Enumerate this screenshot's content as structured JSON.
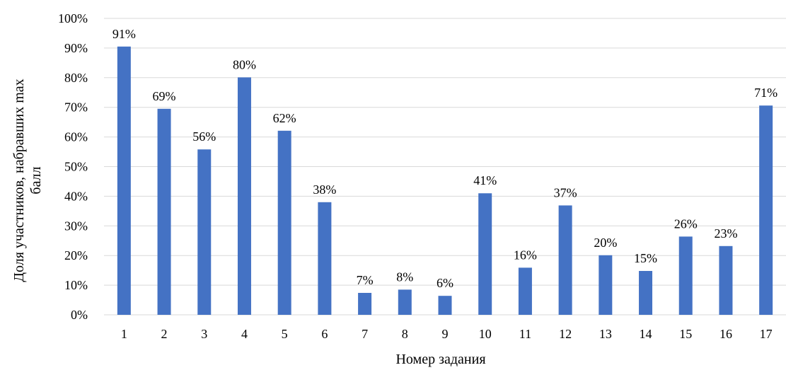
{
  "chart_data": {
    "type": "bar",
    "title": "",
    "xlabel": "Номер задания",
    "ylabel_lines": [
      "Доля участников, набравших max",
      "балл"
    ],
    "categories": [
      "1",
      "2",
      "3",
      "4",
      "5",
      "6",
      "7",
      "8",
      "9",
      "10",
      "11",
      "12",
      "13",
      "14",
      "15",
      "16",
      "17"
    ],
    "values": [
      91,
      69,
      56,
      80,
      62,
      38,
      7,
      8,
      6,
      41,
      16,
      37,
      20,
      15,
      26,
      23,
      71
    ],
    "bar_heights": [
      90.5,
      69.5,
      55.8,
      80.1,
      62.1,
      38.0,
      7.4,
      8.5,
      6.4,
      41.0,
      15.9,
      36.9,
      20.1,
      14.8,
      26.4,
      23.2,
      70.6
    ],
    "data_labels": [
      "91%",
      "69%",
      "56%",
      "80%",
      "62%",
      "38%",
      "7%",
      "8%",
      "6%",
      "41%",
      "16%",
      "37%",
      "20%",
      "15%",
      "26%",
      "23%",
      "71%"
    ],
    "ylim": [
      0,
      100
    ],
    "yticks": [
      0,
      10,
      20,
      30,
      40,
      50,
      60,
      70,
      80,
      90,
      100
    ],
    "ytick_labels": [
      "0%",
      "10%",
      "20%",
      "30%",
      "40%",
      "50%",
      "60%",
      "70%",
      "80%",
      "90%",
      "100%"
    ],
    "grid": true,
    "legend": "none",
    "colors": {
      "bar": "#4472C4",
      "grid": "#D9D9D9",
      "axis": "#D9D9D9",
      "text": "#000000"
    }
  }
}
